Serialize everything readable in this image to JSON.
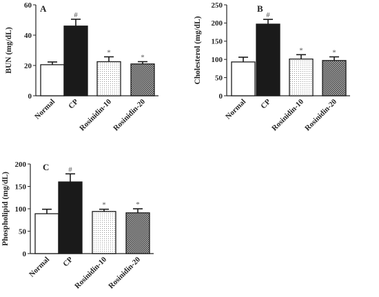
{
  "chart_data": [
    {
      "type": "bar",
      "panel_label": "A",
      "ylabel": "BUN (mg/dL)",
      "ylim": [
        0,
        60
      ],
      "yticks": [
        0,
        20,
        40,
        60
      ],
      "categories": [
        "Normal",
        "CP",
        "Rosinidin-10",
        "Rosinidin-20"
      ],
      "values": [
        20.5,
        46,
        22.5,
        21
      ],
      "errors": [
        1.8,
        4.5,
        3.2,
        1.5
      ],
      "annotations": [
        "",
        "#",
        "*",
        "*"
      ],
      "fills": [
        "white",
        "black",
        "dots",
        "crosshatch"
      ]
    },
    {
      "type": "bar",
      "panel_label": "B",
      "ylabel": "Cholesterol (mg/dL)",
      "ylim": [
        0,
        250
      ],
      "yticks": [
        0,
        50,
        100,
        150,
        200,
        250
      ],
      "categories": [
        "Normal",
        "CP",
        "Rosinidin-10",
        "Rosinidin-20"
      ],
      "values": [
        93,
        197,
        101,
        97
      ],
      "errors": [
        13,
        13,
        12,
        10
      ],
      "annotations": [
        "",
        "#",
        "*",
        "*"
      ],
      "fills": [
        "white",
        "black",
        "dots",
        "crosshatch"
      ]
    },
    {
      "type": "bar",
      "panel_label": "C",
      "ylabel": "Phospholipid (mg/dL)",
      "ylim": [
        0,
        200
      ],
      "yticks": [
        0,
        50,
        100,
        150,
        200
      ],
      "categories": [
        "Normal",
        "CP",
        "Rosinidin-10",
        "Rosinidin-20"
      ],
      "values": [
        89,
        160,
        94,
        91
      ],
      "errors": [
        10,
        18,
        5,
        9
      ],
      "annotations": [
        "",
        "#",
        "*",
        "*"
      ],
      "fills": [
        "white",
        "black",
        "dots",
        "crosshatch"
      ]
    }
  ]
}
